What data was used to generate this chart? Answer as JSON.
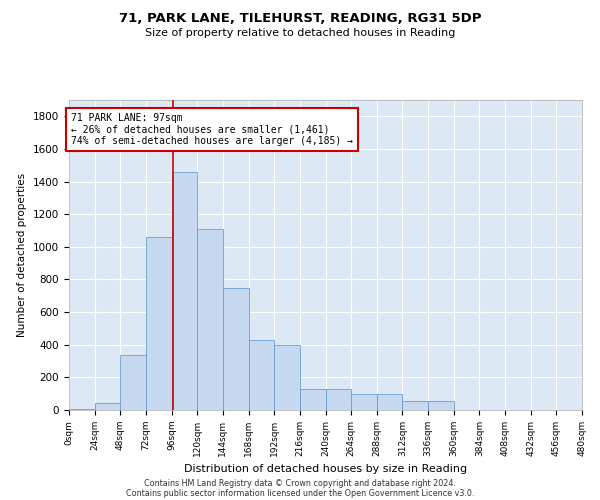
{
  "title": "71, PARK LANE, TILEHURST, READING, RG31 5DP",
  "subtitle": "Size of property relative to detached houses in Reading",
  "xlabel": "Distribution of detached houses by size in Reading",
  "ylabel": "Number of detached properties",
  "bin_labels": [
    "0sqm",
    "24sqm",
    "48sqm",
    "72sqm",
    "96sqm",
    "120sqm",
    "144sqm",
    "168sqm",
    "192sqm",
    "216sqm",
    "240sqm",
    "264sqm",
    "288sqm",
    "312sqm",
    "336sqm",
    "360sqm",
    "384sqm",
    "408sqm",
    "432sqm",
    "456sqm",
    "480sqm"
  ],
  "bar_heights": [
    5,
    45,
    340,
    1060,
    1460,
    1110,
    750,
    430,
    400,
    130,
    130,
    100,
    100,
    55,
    55,
    0,
    0,
    0,
    0,
    0
  ],
  "bar_color": "#c6d9f0",
  "bar_edge_color": "#6a9fd0",
  "property_value": 97,
  "bin_width": 24,
  "annotation_line1": "71 PARK LANE: 97sqm",
  "annotation_line2": "← 26% of detached houses are smaller (1,461)",
  "annotation_line3": "74% of semi-detached houses are larger (4,185) →",
  "annotation_box_color": "#ffffff",
  "annotation_box_edge": "#cc0000",
  "vline_color": "#cc0000",
  "ylim": [
    0,
    1900
  ],
  "yticks": [
    0,
    200,
    400,
    600,
    800,
    1000,
    1200,
    1400,
    1600,
    1800
  ],
  "background_color": "#dce9f5",
  "grid_color": "#ffffff",
  "footer_line1": "Contains HM Land Registry data © Crown copyright and database right 2024.",
  "footer_line2": "Contains public sector information licensed under the Open Government Licence v3.0."
}
